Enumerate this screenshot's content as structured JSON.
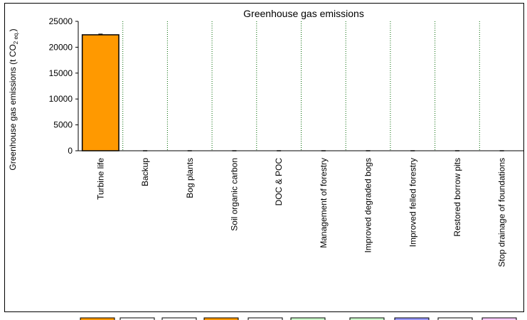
{
  "chart_data": {
    "type": "bar",
    "title": "Greenhouse gas emissions",
    "ylabel_main": "Greenhouse gas emissions (t CO",
    "ylabel_sub": "2 eq.",
    "ylabel_close": ")",
    "ylim": [
      0,
      25000
    ],
    "yticks": [
      "0",
      "5000",
      "10000",
      "15000",
      "20000",
      "25000"
    ],
    "grid": false,
    "categories": [
      "Turbine life",
      "Backup",
      "Bog plants",
      "Soil organic carbon",
      "DOC & POC",
      "Management of forestry",
      "Improved degraded bogs",
      "Improved felled forestry",
      "Restored borrow pits",
      "Stop drainage of foundations"
    ],
    "values": [
      22400,
      0,
      0,
      0,
      0,
      0,
      0,
      0,
      0,
      0
    ],
    "bar_color": "#ff9900",
    "separator_color": "#006600"
  },
  "legend_swatches": [
    {
      "color": "#ff9900"
    },
    {
      "color": "#ffffff"
    },
    {
      "color": "#ffffff"
    },
    {
      "color": "#ff9900"
    },
    {
      "color": "#ffffff"
    },
    {
      "color": "#ccffcc"
    },
    {
      "color": "#ccffcc"
    },
    {
      "color": "#9999ff"
    },
    {
      "color": "#ffffff"
    },
    {
      "color": "#ffccff"
    }
  ]
}
